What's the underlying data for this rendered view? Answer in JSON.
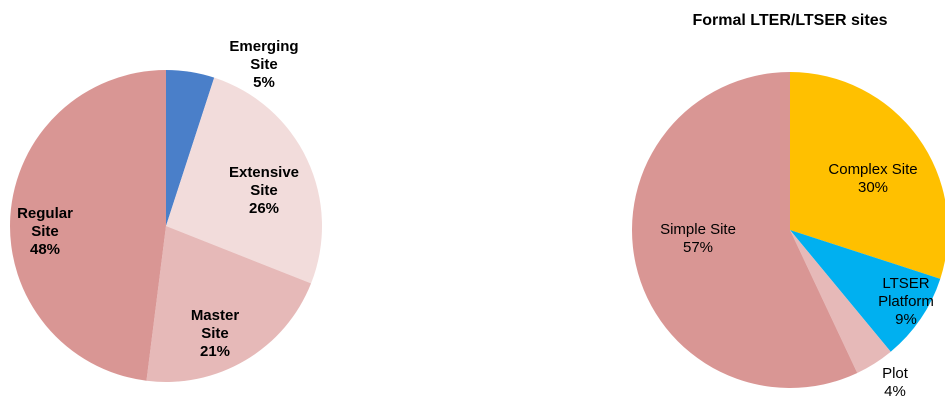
{
  "chart_data": [
    {
      "type": "pie",
      "title": "",
      "slices": [
        {
          "label": "Emerging Site",
          "value": 5,
          "value_label": "5%",
          "color": "#4a7fc9",
          "label_lines": [
            "Emerging",
            "Site",
            "5%"
          ]
        },
        {
          "label": "Extensive Site",
          "value": 26,
          "value_label": "26%",
          "color": "#f2dcdb",
          "label_lines": [
            "Extensive",
            "Site",
            "26%"
          ]
        },
        {
          "label": "Master Site",
          "value": 21,
          "value_label": "21%",
          "color": "#e6b9b8",
          "label_lines": [
            "Master",
            "Site",
            "21%"
          ]
        },
        {
          "label": "Regular Site",
          "value": 48,
          "value_label": "48%",
          "color": "#d99694",
          "label_lines": [
            "Regular",
            "Site",
            "48%"
          ]
        }
      ]
    },
    {
      "type": "pie",
      "title": "Formal LTER/LTSER sites",
      "slices": [
        {
          "label": "Complex Site",
          "value": 30,
          "value_label": "30%",
          "color": "#ffc000",
          "label_lines": [
            "Complex Site",
            "30%"
          ]
        },
        {
          "label": "LTSER Platform",
          "value": 9,
          "value_label": "9%",
          "color": "#00b0f0",
          "label_lines": [
            "LTSER",
            "Platform",
            "9%"
          ]
        },
        {
          "label": "Plot",
          "value": 4,
          "value_label": "4%",
          "color": "#e6b9b8",
          "label_lines": [
            "Plot",
            "4%"
          ]
        },
        {
          "label": "Simple Site",
          "value": 57,
          "value_label": "57%",
          "color": "#d99694",
          "label_lines": [
            "Simple Site",
            "57%"
          ]
        }
      ]
    }
  ]
}
